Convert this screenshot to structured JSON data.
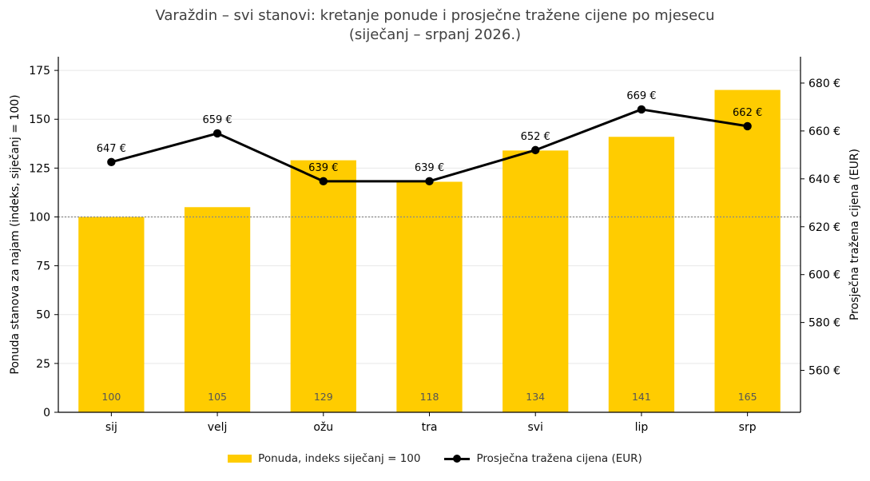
{
  "chart_data": {
    "type": "bar",
    "title_lines": [
      "Varaždin – svi stanovi: kretanje ponude i prosječne tražene cijene po mjesecu",
      "(siječanj – srpanj 2026.)"
    ],
    "categories": [
      "sij",
      "velj",
      "ožu",
      "tra",
      "svi",
      "lip",
      "srp"
    ],
    "series": [
      {
        "name": "Ponuda, indeks siječanj = 100",
        "type": "bar",
        "axis": "left",
        "color": "#FFCC00",
        "values": [
          100,
          105,
          129,
          118,
          134,
          141,
          165
        ],
        "labels": [
          "100",
          "105",
          "129",
          "118",
          "134",
          "141",
          "165"
        ]
      },
      {
        "name": "Prosječna tražena cijena (EUR)",
        "type": "line",
        "axis": "right",
        "color": "#000000",
        "values": [
          647,
          659,
          639,
          639,
          652,
          669,
          662
        ],
        "labels": [
          "647 €",
          "659 €",
          "639 €",
          "639 €",
          "652 €",
          "669 €",
          "662 €"
        ]
      }
    ],
    "ylabel_left": "Ponuda stanova za najam (indeks, siječanj = 100)",
    "ylabel_right": "Prosječna tražena cijena (EUR)",
    "ylim_left": [
      0,
      182
    ],
    "ylim_right": [
      542.5,
      691
    ],
    "yticks_left": [
      0,
      25,
      50,
      75,
      100,
      125,
      150,
      175
    ],
    "yticks_right": [
      560,
      580,
      600,
      620,
      640,
      660,
      680
    ],
    "yticks_right_labels": [
      "560 €",
      "580 €",
      "600 €",
      "620 €",
      "640 €",
      "660 €",
      "680 €"
    ],
    "reference_line_left": 100,
    "grid": "horizontal",
    "legend_position": "bottom-center"
  }
}
